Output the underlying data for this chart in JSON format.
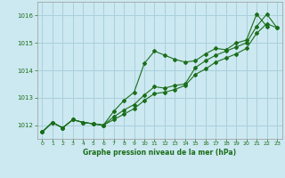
{
  "bg_color": "#cce8f0",
  "grid_color": "#a8d0dc",
  "line_color": "#1a6e1a",
  "title": "Graphe pression niveau de la mer (hPa)",
  "xlim": [
    -0.5,
    23.5
  ],
  "ylim": [
    1011.5,
    1016.5
  ],
  "yticks": [
    1012,
    1013,
    1014,
    1015,
    1016
  ],
  "xticks": [
    0,
    1,
    2,
    3,
    4,
    5,
    6,
    7,
    8,
    9,
    10,
    11,
    12,
    13,
    14,
    15,
    16,
    17,
    18,
    19,
    20,
    21,
    22,
    23
  ],
  "series1_x": [
    0,
    1,
    2,
    3,
    4,
    5,
    6,
    7,
    8,
    9,
    10,
    11,
    12,
    13,
    14,
    15,
    16,
    17,
    18,
    19,
    20,
    21,
    22
  ],
  "series1_y": [
    1011.75,
    1012.1,
    1011.9,
    1012.2,
    1012.1,
    1012.05,
    1012.0,
    1012.5,
    1012.9,
    1013.2,
    1014.25,
    1014.7,
    1014.55,
    1014.4,
    1014.3,
    1014.35,
    1014.6,
    1014.8,
    1014.75,
    1015.0,
    1015.1,
    1016.05,
    1015.6
  ],
  "series2_x": [
    0,
    1,
    2,
    3,
    4,
    5,
    6,
    7,
    8,
    9,
    10,
    11,
    12,
    13,
    14,
    15,
    16,
    17,
    18,
    19,
    20,
    21,
    22,
    23
  ],
  "series2_y": [
    1011.75,
    1012.1,
    1011.9,
    1012.2,
    1012.1,
    1012.05,
    1012.0,
    1012.3,
    1012.55,
    1012.75,
    1013.1,
    1013.4,
    1013.35,
    1013.45,
    1013.5,
    1014.1,
    1014.35,
    1014.55,
    1014.7,
    1014.85,
    1015.0,
    1015.6,
    1016.05,
    1015.55
  ],
  "series3_x": [
    0,
    1,
    2,
    3,
    4,
    5,
    6,
    7,
    8,
    9,
    10,
    11,
    12,
    13,
    14,
    15,
    16,
    17,
    18,
    19,
    20,
    21,
    22,
    23
  ],
  "series3_y": [
    1011.75,
    1012.1,
    1011.9,
    1012.2,
    1012.1,
    1012.05,
    1012.0,
    1012.2,
    1012.4,
    1012.6,
    1012.9,
    1013.15,
    1013.2,
    1013.3,
    1013.45,
    1013.85,
    1014.05,
    1014.3,
    1014.45,
    1014.6,
    1014.8,
    1015.35,
    1015.7,
    1015.55
  ]
}
